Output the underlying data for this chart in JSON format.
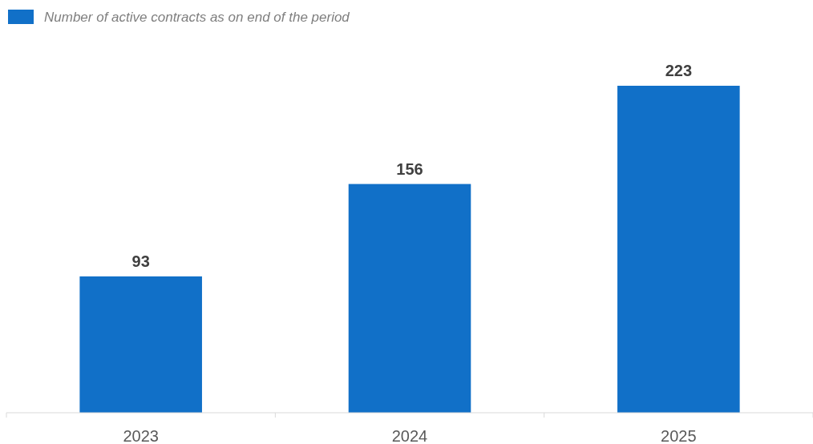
{
  "chart_data": {
    "type": "bar",
    "categories": [
      "2023",
      "2024",
      "2025"
    ],
    "series": [
      {
        "name": "Number of active contracts as on end of the period",
        "color": "#1170c8",
        "values": [
          93,
          156,
          223
        ]
      }
    ],
    "data_labels": true,
    "legend": "top left"
  }
}
